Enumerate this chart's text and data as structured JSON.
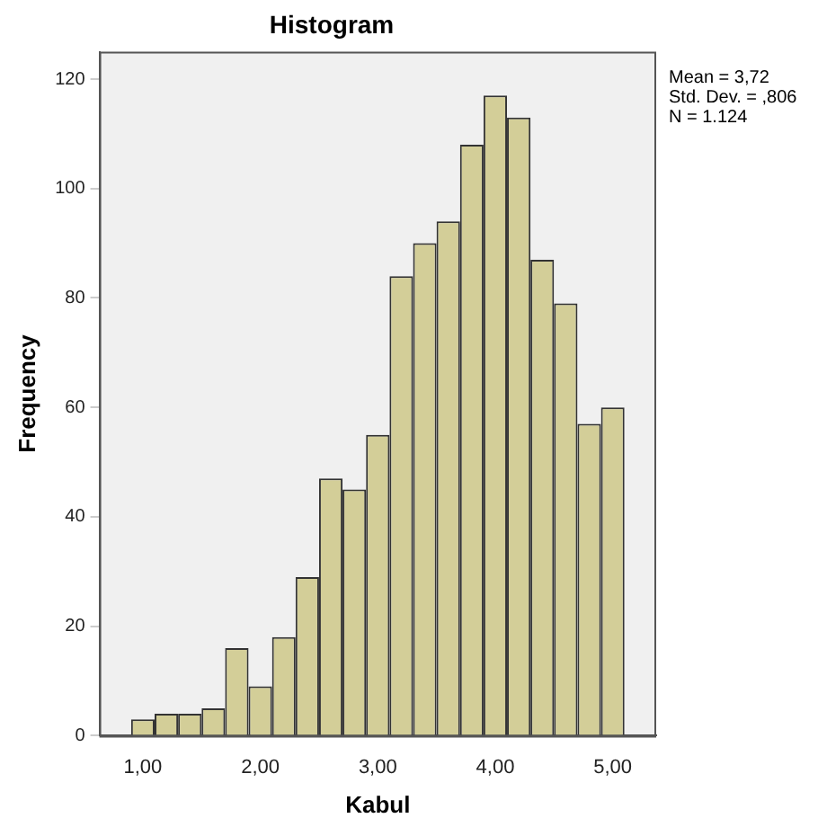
{
  "chart_data": {
    "type": "histogram",
    "title": "Histogram",
    "xlabel": "Kabul",
    "ylabel": "Frequency",
    "bins": [
      0.9,
      1.1,
      1.3,
      1.5,
      1.7,
      1.9,
      2.1,
      2.3,
      2.5,
      2.7,
      2.9,
      3.1,
      3.3,
      3.5,
      3.7,
      3.9,
      4.1,
      4.3,
      4.5,
      4.7,
      4.9,
      5.1
    ],
    "values": [
      3,
      4,
      4,
      5,
      16,
      9,
      18,
      29,
      47,
      45,
      55,
      84,
      90,
      94,
      108,
      117,
      113,
      87,
      79,
      57,
      60
    ],
    "color": "#d3ce98",
    "xlim": [
      0.63,
      5.37
    ],
    "ylim": [
      0,
      125
    ],
    "xticks": [
      {
        "value": 1,
        "label": "1,00"
      },
      {
        "value": 2,
        "label": "2,00"
      },
      {
        "value": 3,
        "label": "3,00"
      },
      {
        "value": 4,
        "label": "4,00"
      },
      {
        "value": 5,
        "label": "5,00"
      }
    ],
    "yticks": [
      0,
      20,
      40,
      60,
      80,
      100,
      120
    ],
    "grid": false,
    "legend": false,
    "annotations": [
      "Mean = 3,72",
      "Std. Dev. = ,806",
      "N = 1.124"
    ]
  }
}
